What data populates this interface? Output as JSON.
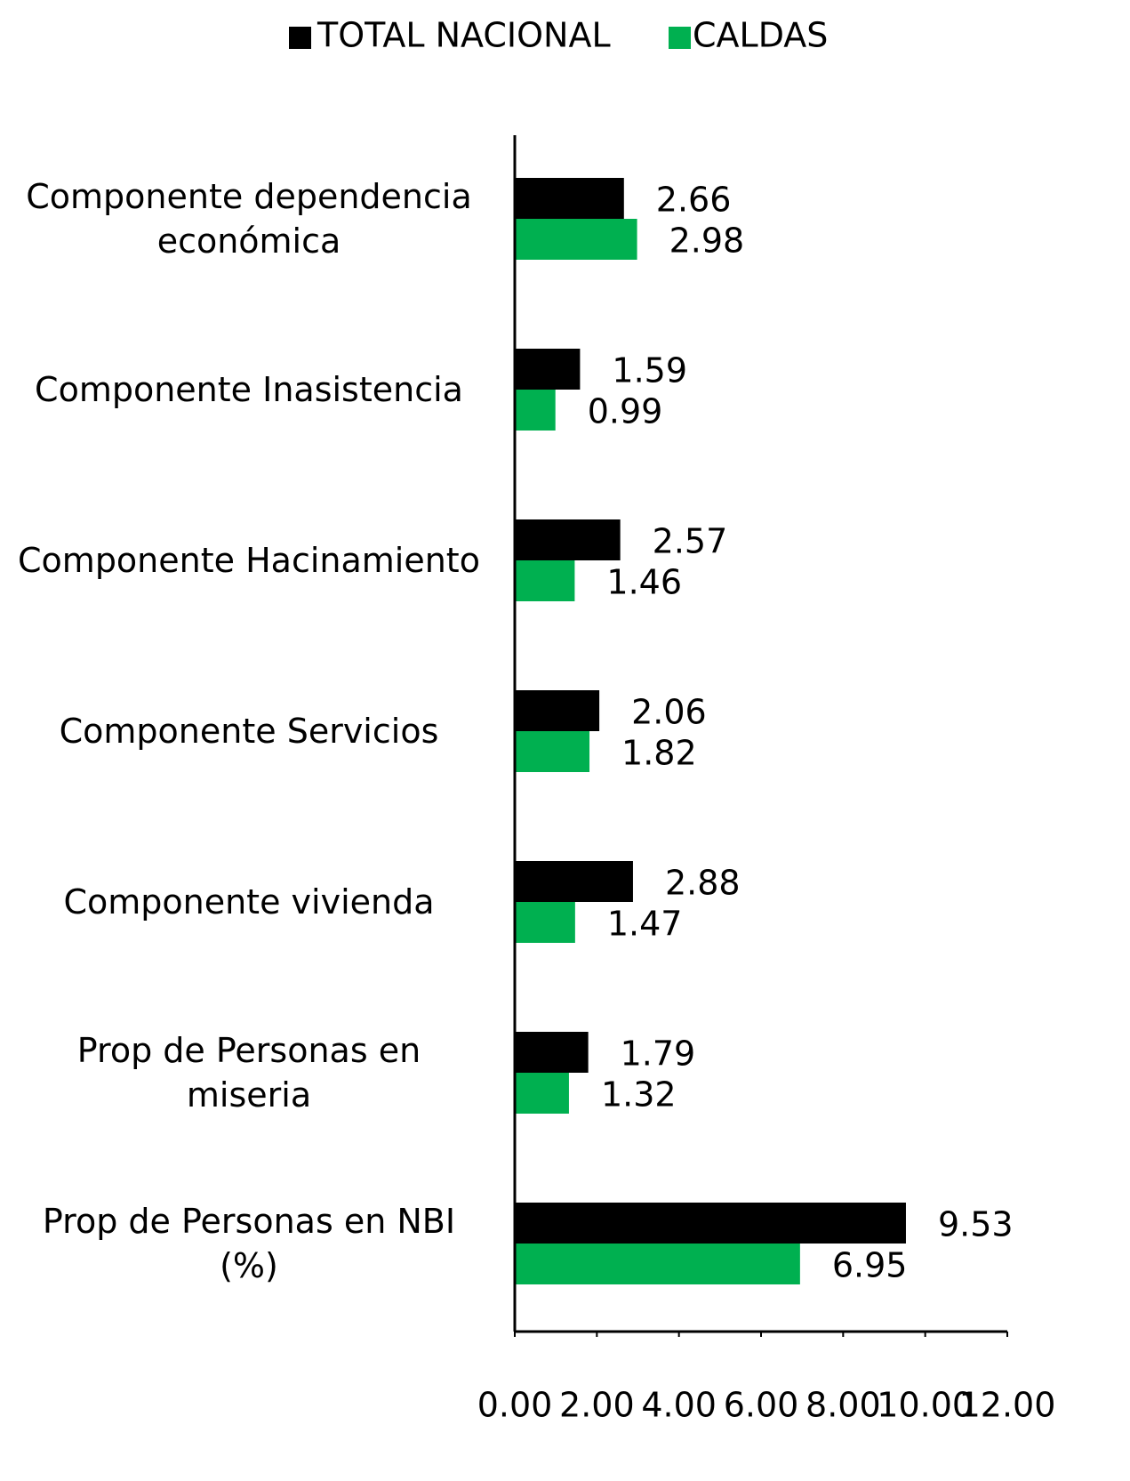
{
  "chart_data": {
    "type": "bar",
    "orientation": "horizontal",
    "categories": [
      "Componente dependencia económica",
      "Componente Inasistencia",
      "Componente Hacinamiento",
      "Componente Servicios",
      "Componente vivienda",
      "Prop de Personas en miseria",
      "Prop de Personas en NBI (%)"
    ],
    "series": [
      {
        "name": "TOTAL NACIONAL",
        "color": "#000000",
        "values": [
          2.66,
          1.59,
          2.57,
          2.06,
          2.88,
          1.79,
          9.53
        ]
      },
      {
        "name": "CALDAS",
        "color": "#00b050",
        "values": [
          2.98,
          0.99,
          1.46,
          1.82,
          1.47,
          1.32,
          6.95
        ]
      }
    ],
    "xlim": [
      0,
      12
    ],
    "xticks": [
      {
        "value": 0,
        "label": "0.00"
      },
      {
        "value": 2,
        "label": "2.00"
      },
      {
        "value": 4,
        "label": "4.00"
      },
      {
        "value": 6,
        "label": "6.00"
      },
      {
        "value": 8,
        "label": "8.00"
      },
      {
        "value": 10,
        "label": "10.00"
      },
      {
        "value": 12,
        "label": "12.00"
      }
    ],
    "legend": "top"
  }
}
